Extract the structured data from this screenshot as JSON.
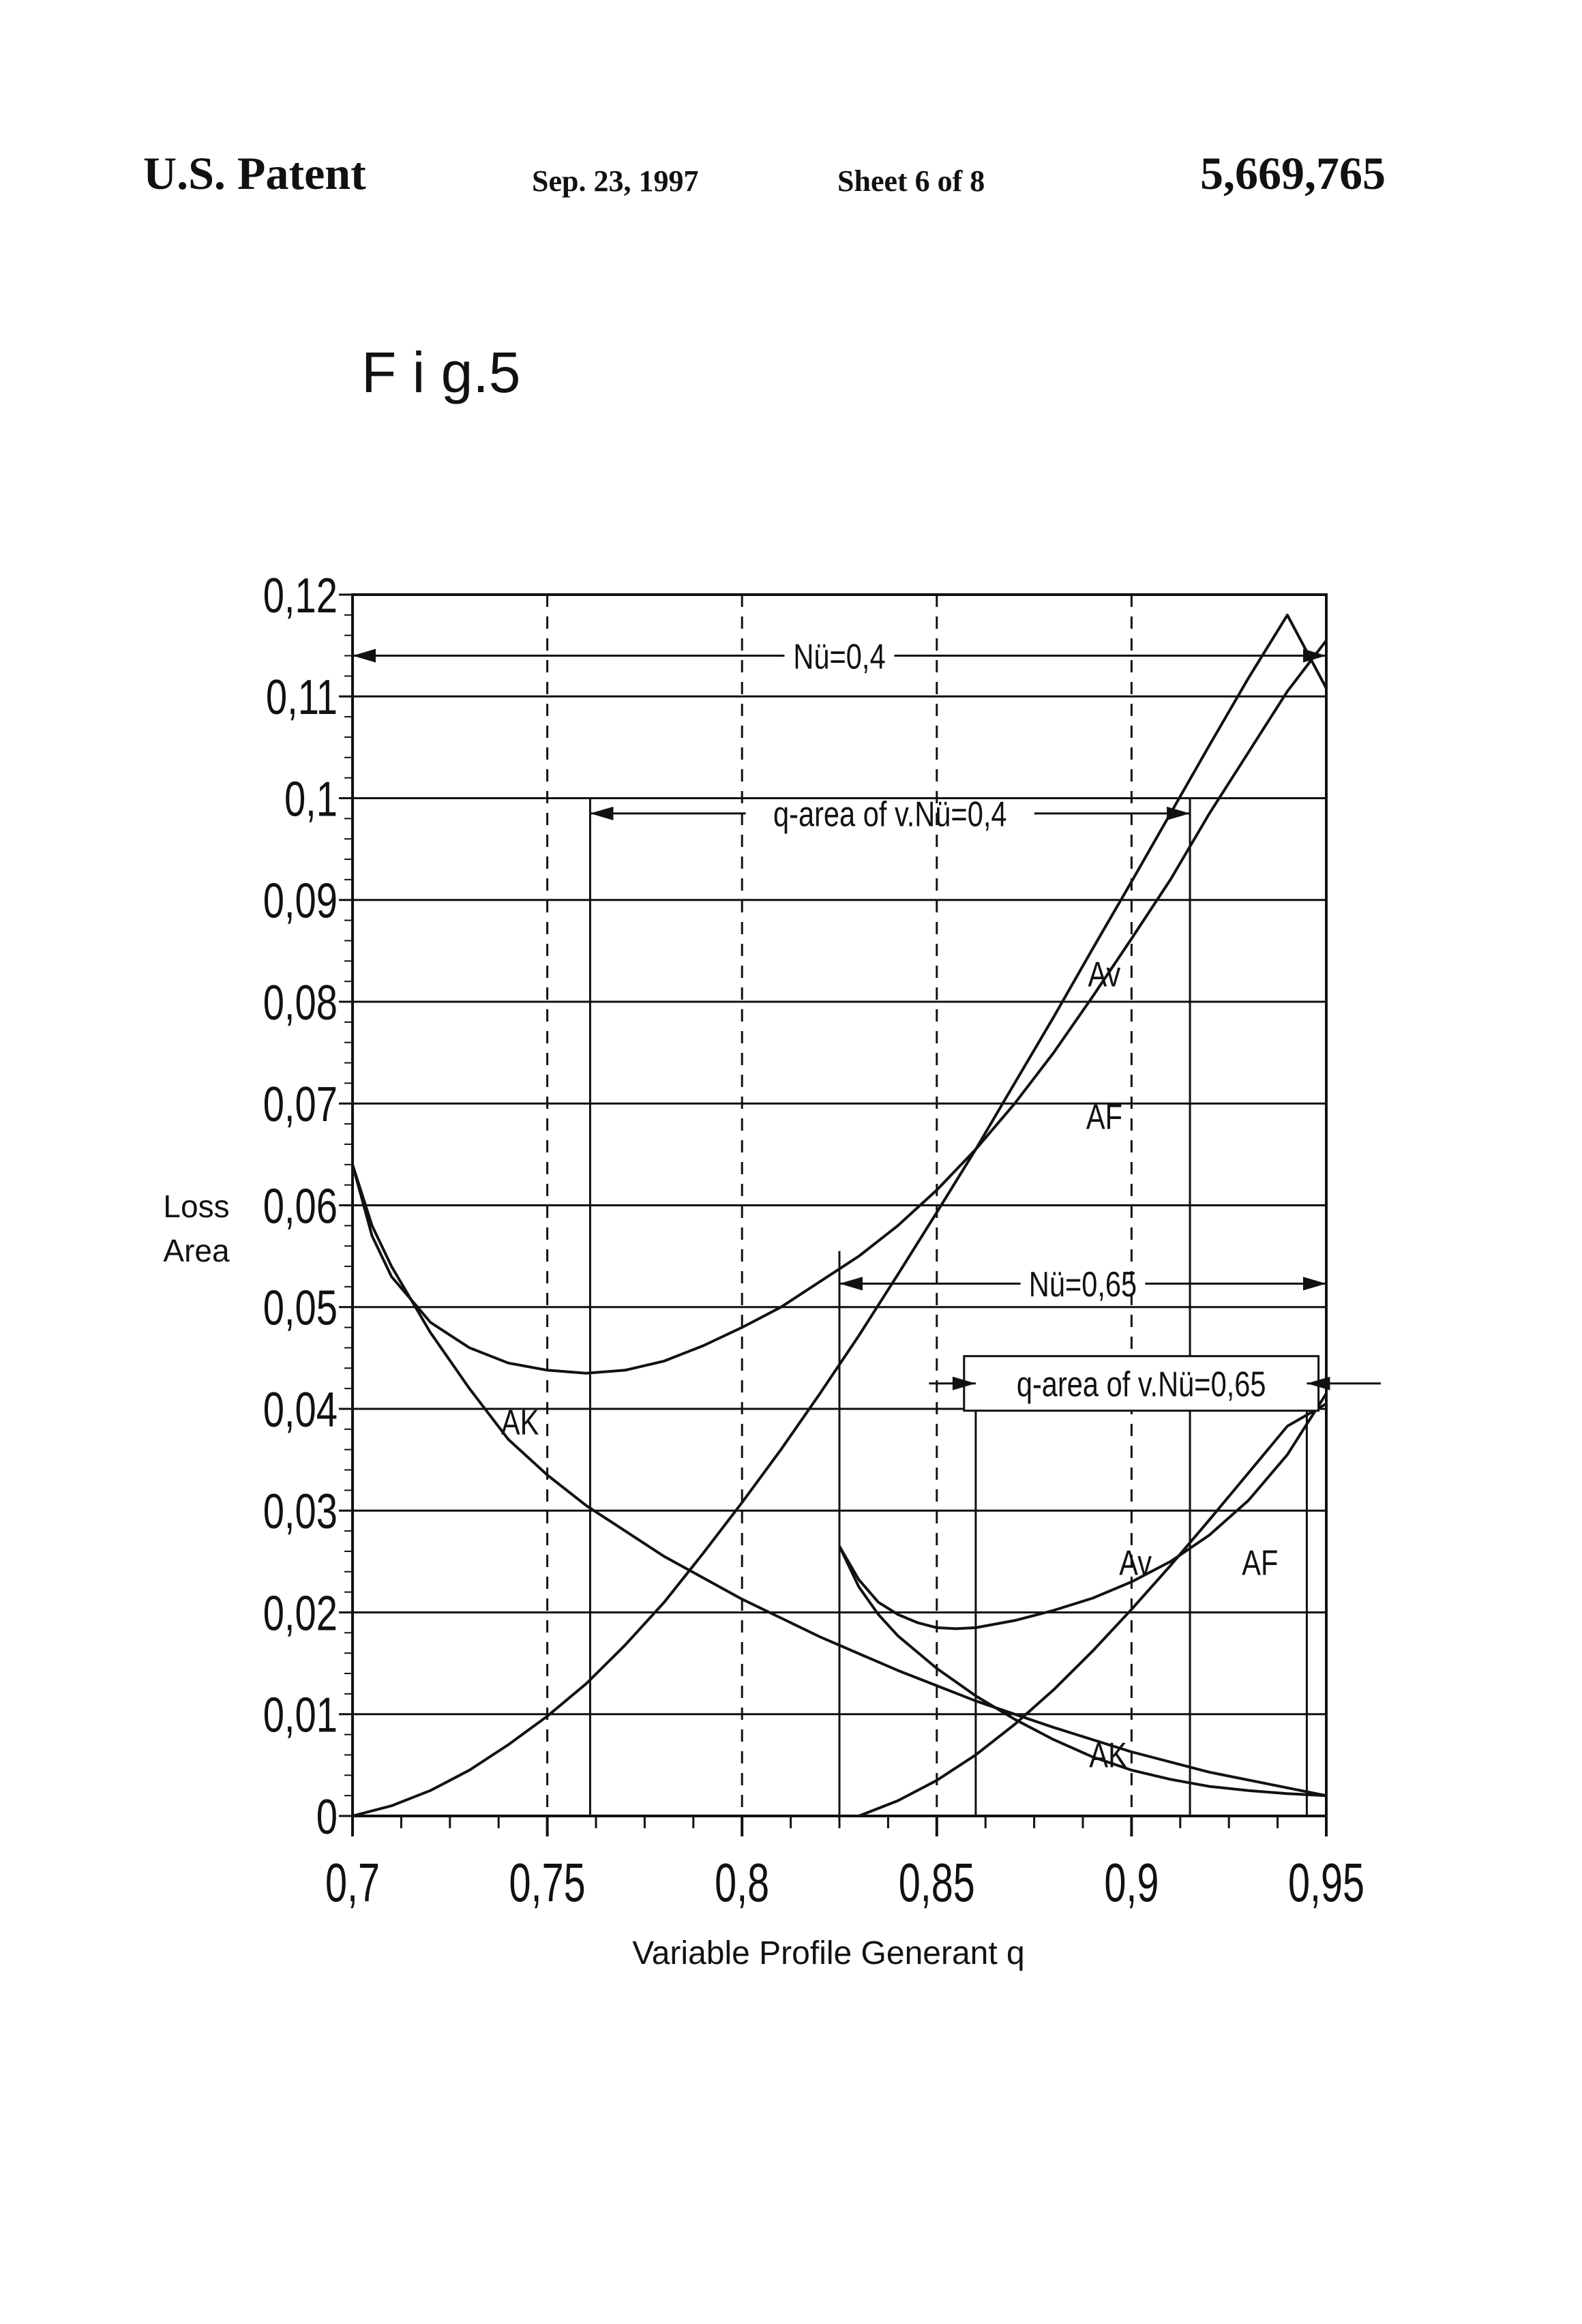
{
  "header": {
    "left": "U.S. Patent",
    "date": "Sep. 23, 1997",
    "sheet": "Sheet 6 of 8",
    "patent_number": "5,669,765"
  },
  "figure_label": "F i g.5",
  "chart_data": {
    "type": "line",
    "ylabel_line1": "Loss",
    "ylabel_line2": "Area",
    "xlabel": "Variable Profile Generant q",
    "xlim": [
      0.7,
      0.95
    ],
    "ylim": [
      0,
      0.12
    ],
    "x_ticks": [
      0.7,
      0.75,
      0.8,
      0.85,
      0.9,
      0.95
    ],
    "x_tick_labels": [
      "0,7",
      "0,75",
      "0,8",
      "0,85",
      "0,9",
      "0,95"
    ],
    "y_ticks": [
      0,
      0.01,
      0.02,
      0.03,
      0.04,
      0.05,
      0.06,
      0.07,
      0.08,
      0.09,
      0.1,
      0.11,
      0.12
    ],
    "y_tick_labels": [
      "0",
      "0,01",
      "0,02",
      "0,03",
      "0,04",
      "0,05",
      "0,06",
      "0,07",
      "0,08",
      "0,09",
      "0,1",
      "0,11",
      "0,12"
    ],
    "grid": "horizontal at every major y tick; dashed vertical at 0.75, 0.8, 0.85, 0.9",
    "series": [
      {
        "name": "Av",
        "group": "Nü=0,4",
        "x": [
          0.7,
          0.705,
          0.71,
          0.72,
          0.73,
          0.74,
          0.75,
          0.76,
          0.77,
          0.78,
          0.79,
          0.8,
          0.81,
          0.82,
          0.83,
          0.84,
          0.85,
          0.86,
          0.87,
          0.88,
          0.89,
          0.9,
          0.91,
          0.92,
          0.93,
          0.94,
          0.95
        ],
        "y": [
          0.064,
          0.057,
          0.053,
          0.0485,
          0.046,
          0.0445,
          0.0438,
          0.0435,
          0.0438,
          0.0447,
          0.0462,
          0.048,
          0.05,
          0.0525,
          0.055,
          0.058,
          0.0615,
          0.0655,
          0.07,
          0.075,
          0.0805,
          0.0862,
          0.092,
          0.0985,
          0.1045,
          0.1105,
          0.1155
        ]
      },
      {
        "name": "AF",
        "group": "Nü=0,4",
        "x": [
          0.7,
          0.71,
          0.72,
          0.73,
          0.74,
          0.75,
          0.76,
          0.77,
          0.78,
          0.79,
          0.8,
          0.81,
          0.82,
          0.83,
          0.84,
          0.85,
          0.86,
          0.87,
          0.88,
          0.89,
          0.9,
          0.91,
          0.92,
          0.93,
          0.94,
          0.95
        ],
        "y": [
          0,
          0.001,
          0.0025,
          0.0045,
          0.007,
          0.0098,
          0.013,
          0.0168,
          0.021,
          0.0258,
          0.0308,
          0.036,
          0.0415,
          0.0472,
          0.0532,
          0.0593,
          0.0655,
          0.072,
          0.0785,
          0.0852,
          0.0918,
          0.0985,
          0.1052,
          0.1118,
          0.118,
          0.1108
        ]
      },
      {
        "name": "AK",
        "group": "Nü=0,4",
        "x": [
          0.7,
          0.705,
          0.71,
          0.72,
          0.73,
          0.74,
          0.75,
          0.76,
          0.78,
          0.8,
          0.82,
          0.84,
          0.86,
          0.88,
          0.9,
          0.92,
          0.95
        ],
        "y": [
          0.064,
          0.058,
          0.054,
          0.0475,
          0.042,
          0.037,
          0.0335,
          0.0305,
          0.0255,
          0.0213,
          0.0176,
          0.0143,
          0.0113,
          0.0087,
          0.0063,
          0.0043,
          0.002
        ]
      },
      {
        "name": "Av",
        "group": "Nü=0,65",
        "x": [
          0.825,
          0.83,
          0.835,
          0.84,
          0.845,
          0.85,
          0.855,
          0.86,
          0.87,
          0.88,
          0.89,
          0.9,
          0.91,
          0.92,
          0.93,
          0.94,
          0.95
        ],
        "y": [
          0.0265,
          0.0232,
          0.021,
          0.0198,
          0.019,
          0.0185,
          0.0184,
          0.0185,
          0.0192,
          0.0202,
          0.0214,
          0.023,
          0.025,
          0.0276,
          0.031,
          0.0355,
          0.0415
        ]
      },
      {
        "name": "AF",
        "group": "Nü=0,65",
        "x": [
          0.83,
          0.84,
          0.85,
          0.86,
          0.87,
          0.88,
          0.89,
          0.9,
          0.91,
          0.92,
          0.93,
          0.94,
          0.95
        ],
        "y": [
          0,
          0.0015,
          0.0035,
          0.006,
          0.009,
          0.0124,
          0.0162,
          0.0203,
          0.0246,
          0.0291,
          0.0337,
          0.0383,
          0.0405
        ]
      },
      {
        "name": "AK",
        "group": "Nü=0,65",
        "x": [
          0.825,
          0.83,
          0.835,
          0.84,
          0.85,
          0.86,
          0.87,
          0.88,
          0.89,
          0.9,
          0.91,
          0.92,
          0.93,
          0.94,
          0.95
        ],
        "y": [
          0.0265,
          0.0225,
          0.0198,
          0.0177,
          0.0145,
          0.0118,
          0.0095,
          0.0075,
          0.0058,
          0.0045,
          0.0036,
          0.0029,
          0.0025,
          0.0022,
          0.002
        ]
      }
    ],
    "annotations": [
      {
        "text": "Nü=0,4",
        "range": [
          0.7,
          0.95
        ],
        "y": 0.114
      },
      {
        "text": "q-area of v.Nü=0,4",
        "range": [
          0.761,
          0.915
        ],
        "y": 0.0985
      },
      {
        "text": "Nü=0,65",
        "range": [
          0.825,
          0.95
        ],
        "y": 0.0523
      },
      {
        "text": "q-area of v.Nü=0,65",
        "range": [
          0.86,
          0.945
        ],
        "y": 0.0425
      }
    ],
    "vertical_markers": [
      0.761,
      0.915,
      0.825,
      0.86,
      0.945
    ],
    "curve_labels": [
      {
        "text": "Av",
        "x": 0.893,
        "y": 0.0815
      },
      {
        "text": "AF",
        "x": 0.893,
        "y": 0.0675
      },
      {
        "text": "AK",
        "x": 0.743,
        "y": 0.0375
      },
      {
        "text": "Av",
        "x": 0.901,
        "y": 0.0237
      },
      {
        "text": "AF",
        "x": 0.933,
        "y": 0.0237
      },
      {
        "text": "AK",
        "x": 0.894,
        "y": 0.0048
      }
    ]
  }
}
